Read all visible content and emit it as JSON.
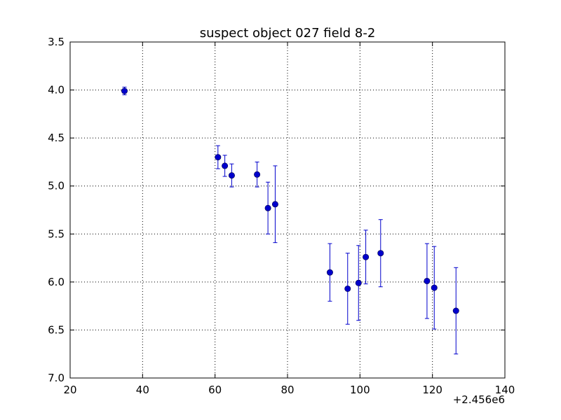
{
  "chart_data": {
    "type": "scatter",
    "title": "suspect object 027 field 8-2",
    "xlabel": "",
    "ylabel": "",
    "x_offset_label": "+2.456e6",
    "xlim": [
      20,
      140
    ],
    "ylim": [
      3.5,
      7.0
    ],
    "y_inverted": true,
    "grid": true,
    "x_ticks": [
      20,
      40,
      60,
      80,
      100,
      120,
      140
    ],
    "x_tick_labels": [
      "20",
      "40",
      "60",
      "80",
      "100",
      "120",
      "140"
    ],
    "y_ticks": [
      3.5,
      4.0,
      4.5,
      5.0,
      5.5,
      6.0,
      6.5,
      7.0
    ],
    "y_tick_labels": [
      "3.5",
      "4.0",
      "4.5",
      "5.0",
      "5.5",
      "6.0",
      "6.5",
      "7.0"
    ],
    "series": [
      {
        "color": "#0000cc",
        "marker": "circle",
        "error_bars": "y",
        "points": [
          {
            "x": 35.0,
            "y": 4.01,
            "yerr": 0.04
          },
          {
            "x": 60.8,
            "y": 4.7,
            "yerr": 0.12
          },
          {
            "x": 62.7,
            "y": 4.79,
            "yerr": 0.11
          },
          {
            "x": 64.6,
            "y": 4.89,
            "yerr": 0.12
          },
          {
            "x": 71.6,
            "y": 4.88,
            "yerr": 0.13
          },
          {
            "x": 74.6,
            "y": 5.23,
            "yerr": 0.27
          },
          {
            "x": 76.6,
            "y": 5.19,
            "yerr": 0.4
          },
          {
            "x": 91.7,
            "y": 5.9,
            "yerr": 0.3
          },
          {
            "x": 96.6,
            "y": 6.07,
            "yerr": 0.37
          },
          {
            "x": 99.6,
            "y": 6.01,
            "yerr": 0.39
          },
          {
            "x": 101.6,
            "y": 5.74,
            "yerr": 0.28
          },
          {
            "x": 105.7,
            "y": 5.7,
            "yerr": 0.35
          },
          {
            "x": 118.5,
            "y": 5.99,
            "yerr": 0.39
          },
          {
            "x": 120.5,
            "y": 6.06,
            "yerr": 0.43
          },
          {
            "x": 126.5,
            "y": 6.3,
            "yerr": 0.45
          }
        ]
      }
    ]
  }
}
